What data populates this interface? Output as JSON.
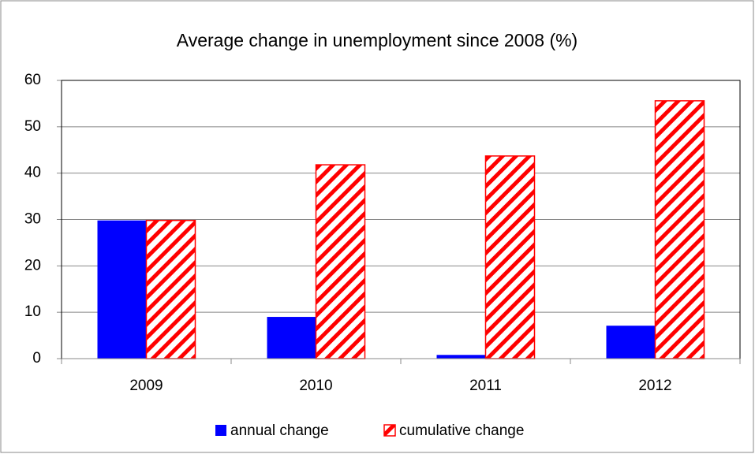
{
  "chart_data": {
    "type": "bar",
    "title": "Average change in unemployment since 2008 (%)",
    "categories": [
      "2009",
      "2010",
      "2011",
      "2012"
    ],
    "series": [
      {
        "name": "annual change",
        "color": "#0000ff",
        "fill": "solid",
        "values": [
          29.8,
          9.0,
          0.8,
          7.1
        ]
      },
      {
        "name": "cumulative change",
        "color": "#ff0000",
        "fill": "hatch",
        "values": [
          29.8,
          41.8,
          43.7,
          55.6
        ]
      }
    ],
    "ylim": [
      0,
      60
    ],
    "yticks": [
      0,
      10,
      20,
      30,
      40,
      50,
      60
    ],
    "grid": true,
    "legend": "bottom"
  }
}
